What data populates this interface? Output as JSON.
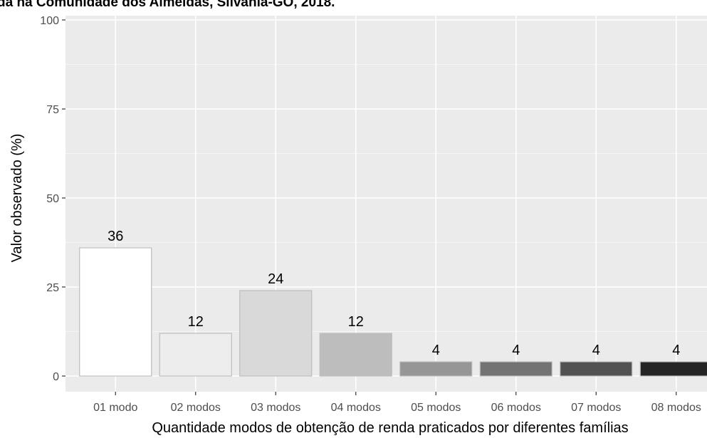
{
  "chart_data": {
    "type": "bar",
    "title": "da na Comunidade dos Almeidas, Silvânia-GO, 2018.",
    "xlabel": "Quantidade modos de obtenção de renda praticados por diferentes famílias",
    "ylabel": "Valor observado (%)",
    "categories": [
      "01 modo",
      "02 modos",
      "03 modos",
      "04 modos",
      "05 modos",
      "06 modos",
      "07 modos",
      "08 modos"
    ],
    "values": [
      36,
      12,
      24,
      12,
      4,
      4,
      4,
      4
    ],
    "data_labels": [
      "36",
      "12",
      "24",
      "12",
      "4",
      "4",
      "4",
      "4"
    ],
    "ylim": [
      0,
      100
    ],
    "yticks": [
      0,
      25,
      50,
      75,
      100
    ],
    "ytick_labels": [
      "0",
      "25",
      "50",
      "75",
      "100"
    ],
    "grid": true,
    "colors": {
      "panel_background": "#ebebeb",
      "grid_major": "#ffffff",
      "grid_minor": "#f5f5f5",
      "bar_outline": "#bdbdbd",
      "bar_fills": [
        "#ffffff",
        "#ededed",
        "#d9d9d9",
        "#bdbdbd",
        "#969696",
        "#737373",
        "#525252",
        "#252525"
      ]
    }
  }
}
